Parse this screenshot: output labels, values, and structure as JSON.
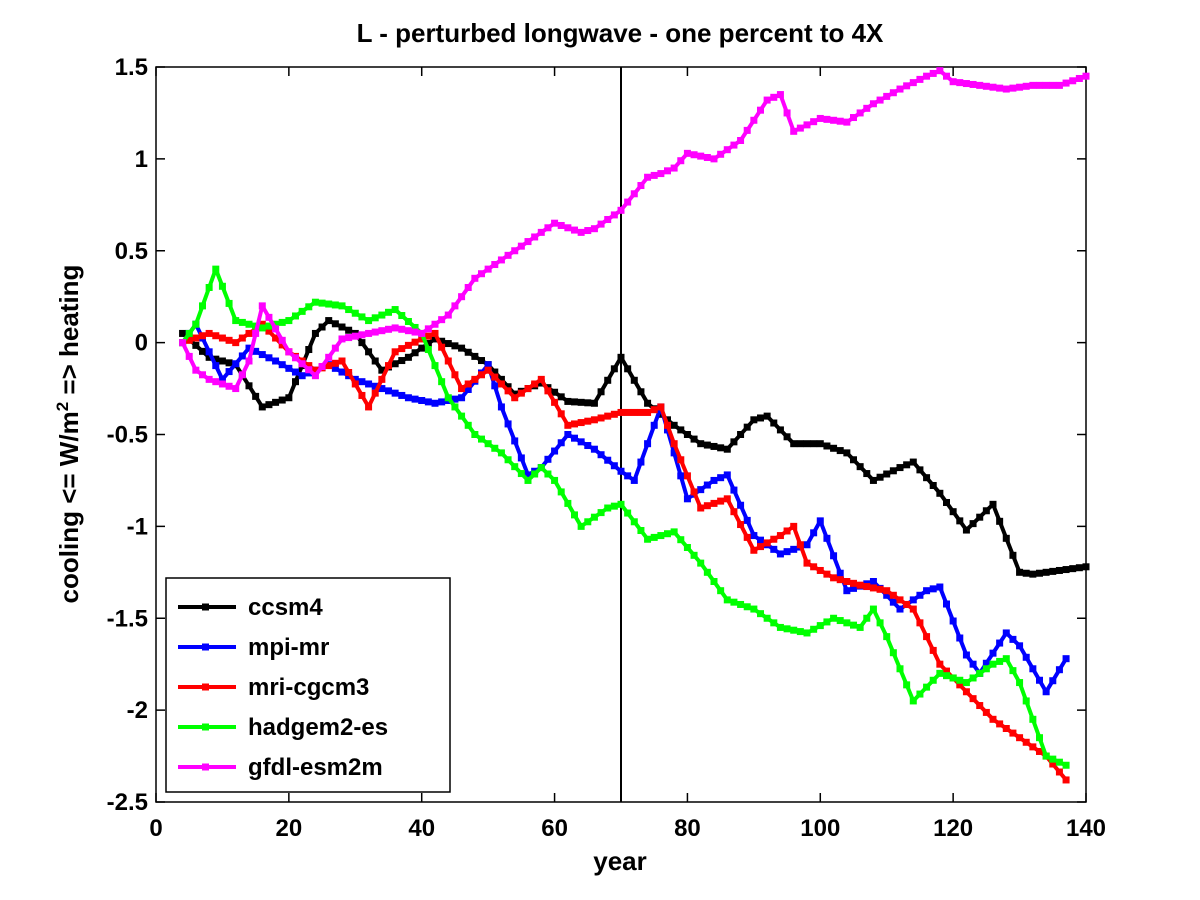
{
  "chart_data": {
    "type": "line",
    "title": "L - perturbed longwave - one percent to 4X",
    "xlabel": "year",
    "ylabel": "cooling <= W/m² => heating",
    "ylabel_parts": {
      "before": "cooling <= W/m",
      "sup": "2",
      "after": " => heating"
    },
    "xlim": [
      0,
      140
    ],
    "ylim": [
      -2.5,
      1.5
    ],
    "xticks": [
      0,
      20,
      40,
      60,
      80,
      100,
      120,
      140
    ],
    "xtick_labels": [
      "0",
      "20",
      "40",
      "60",
      "80",
      "100",
      "120",
      "140"
    ],
    "yticks": [
      -2.5,
      -2,
      -1.5,
      -1,
      -0.5,
      0,
      0.5,
      1,
      1.5
    ],
    "ytick_labels": [
      "-2.5",
      "-2",
      "-1.5",
      "-1",
      "-0.5",
      "0",
      "0.5",
      "1",
      "1.5"
    ],
    "grid": false,
    "legend_position": "bottom-left",
    "vline_x": 70,
    "series": [
      {
        "name": "ccsm4",
        "color": "#000000",
        "x": [
          4,
          8,
          12,
          16,
          20,
          24,
          26,
          30,
          34,
          38,
          42,
          46,
          50,
          54,
          58,
          62,
          66,
          70,
          74,
          78,
          82,
          86,
          90,
          92,
          96,
          100,
          104,
          108,
          112,
          114,
          118,
          122,
          126,
          130,
          132,
          136,
          140
        ],
        "y": [
          0.05,
          -0.08,
          -0.12,
          -0.35,
          -0.3,
          0.05,
          0.12,
          0.05,
          -0.15,
          -0.08,
          0.02,
          -0.03,
          -0.12,
          -0.28,
          -0.22,
          -0.32,
          -0.33,
          -0.08,
          -0.33,
          -0.45,
          -0.55,
          -0.58,
          -0.42,
          -0.4,
          -0.55,
          -0.55,
          -0.6,
          -0.75,
          -0.68,
          -0.65,
          -0.82,
          -1.02,
          -0.88,
          -1.25,
          -1.26,
          -1.24,
          -1.22
        ]
      },
      {
        "name": "mpi-mr",
        "color": "#0000ff",
        "x": [
          4,
          6,
          10,
          14,
          18,
          22,
          26,
          30,
          34,
          38,
          42,
          46,
          50,
          52,
          56,
          58,
          62,
          66,
          70,
          72,
          76,
          80,
          84,
          86,
          90,
          94,
          98,
          100,
          104,
          108,
          112,
          116,
          118,
          122,
          124,
          128,
          130,
          134,
          137
        ],
        "y": [
          0.0,
          0.1,
          -0.2,
          -0.03,
          -0.1,
          -0.18,
          -0.12,
          -0.2,
          -0.25,
          -0.3,
          -0.33,
          -0.3,
          -0.12,
          -0.35,
          -0.72,
          -0.68,
          -0.5,
          -0.58,
          -0.7,
          -0.75,
          -0.35,
          -0.85,
          -0.75,
          -0.72,
          -1.05,
          -1.15,
          -1.1,
          -0.97,
          -1.35,
          -1.3,
          -1.45,
          -1.35,
          -1.33,
          -1.7,
          -1.8,
          -1.58,
          -1.65,
          -1.9,
          -1.72
        ]
      },
      {
        "name": "mri-cgcm3",
        "color": "#ff0000",
        "x": [
          4,
          8,
          12,
          16,
          20,
          24,
          28,
          32,
          36,
          40,
          42,
          46,
          50,
          54,
          58,
          62,
          66,
          70,
          74,
          76,
          78,
          82,
          86,
          90,
          94,
          96,
          98,
          102,
          106,
          110,
          114,
          118,
          122,
          126,
          130,
          134,
          137
        ],
        "y": [
          0.0,
          0.05,
          0.0,
          0.1,
          -0.05,
          -0.15,
          -0.1,
          -0.35,
          -0.05,
          0.02,
          0.05,
          -0.25,
          -0.15,
          -0.3,
          -0.2,
          -0.45,
          -0.42,
          -0.38,
          -0.38,
          -0.35,
          -0.55,
          -0.9,
          -0.85,
          -1.13,
          -1.05,
          -1.0,
          -1.2,
          -1.28,
          -1.32,
          -1.35,
          -1.45,
          -1.75,
          -1.9,
          -2.05,
          -2.15,
          -2.25,
          -2.38
        ]
      },
      {
        "name": "hadgem2-es",
        "color": "#00ff00",
        "x": [
          4,
          6,
          9,
          12,
          16,
          20,
          24,
          28,
          32,
          36,
          40,
          44,
          48,
          52,
          56,
          58,
          60,
          64,
          68,
          70,
          74,
          78,
          82,
          86,
          90,
          94,
          98,
          102,
          106,
          108,
          110,
          114,
          118,
          122,
          126,
          128,
          130,
          134,
          137
        ],
        "y": [
          0.0,
          0.1,
          0.4,
          0.12,
          0.08,
          0.12,
          0.22,
          0.2,
          0.12,
          0.18,
          0.05,
          -0.3,
          -0.5,
          -0.6,
          -0.75,
          -0.68,
          -0.75,
          -1.0,
          -0.9,
          -0.88,
          -1.07,
          -1.03,
          -1.2,
          -1.4,
          -1.45,
          -1.55,
          -1.58,
          -1.5,
          -1.55,
          -1.45,
          -1.6,
          -1.95,
          -1.8,
          -1.85,
          -1.75,
          -1.72,
          -1.85,
          -2.25,
          -2.3
        ]
      },
      {
        "name": "gfdl-esm2m",
        "color": "#ff00ff",
        "x": [
          4,
          6,
          8,
          12,
          14,
          16,
          20,
          24,
          28,
          32,
          36,
          40,
          44,
          48,
          52,
          56,
          60,
          64,
          66,
          70,
          74,
          76,
          78,
          80,
          84,
          86,
          88,
          92,
          94,
          96,
          100,
          104,
          108,
          112,
          116,
          118,
          120,
          124,
          128,
          132,
          136,
          140
        ],
        "y": [
          0.0,
          -0.15,
          -0.2,
          -0.25,
          -0.1,
          0.2,
          -0.05,
          -0.18,
          0.02,
          0.05,
          0.08,
          0.05,
          0.15,
          0.35,
          0.45,
          0.55,
          0.65,
          0.6,
          0.62,
          0.72,
          0.9,
          0.92,
          0.95,
          1.03,
          1.0,
          1.05,
          1.1,
          1.32,
          1.35,
          1.15,
          1.22,
          1.2,
          1.3,
          1.38,
          1.45,
          1.48,
          1.42,
          1.4,
          1.38,
          1.4,
          1.4,
          1.45
        ]
      }
    ]
  }
}
